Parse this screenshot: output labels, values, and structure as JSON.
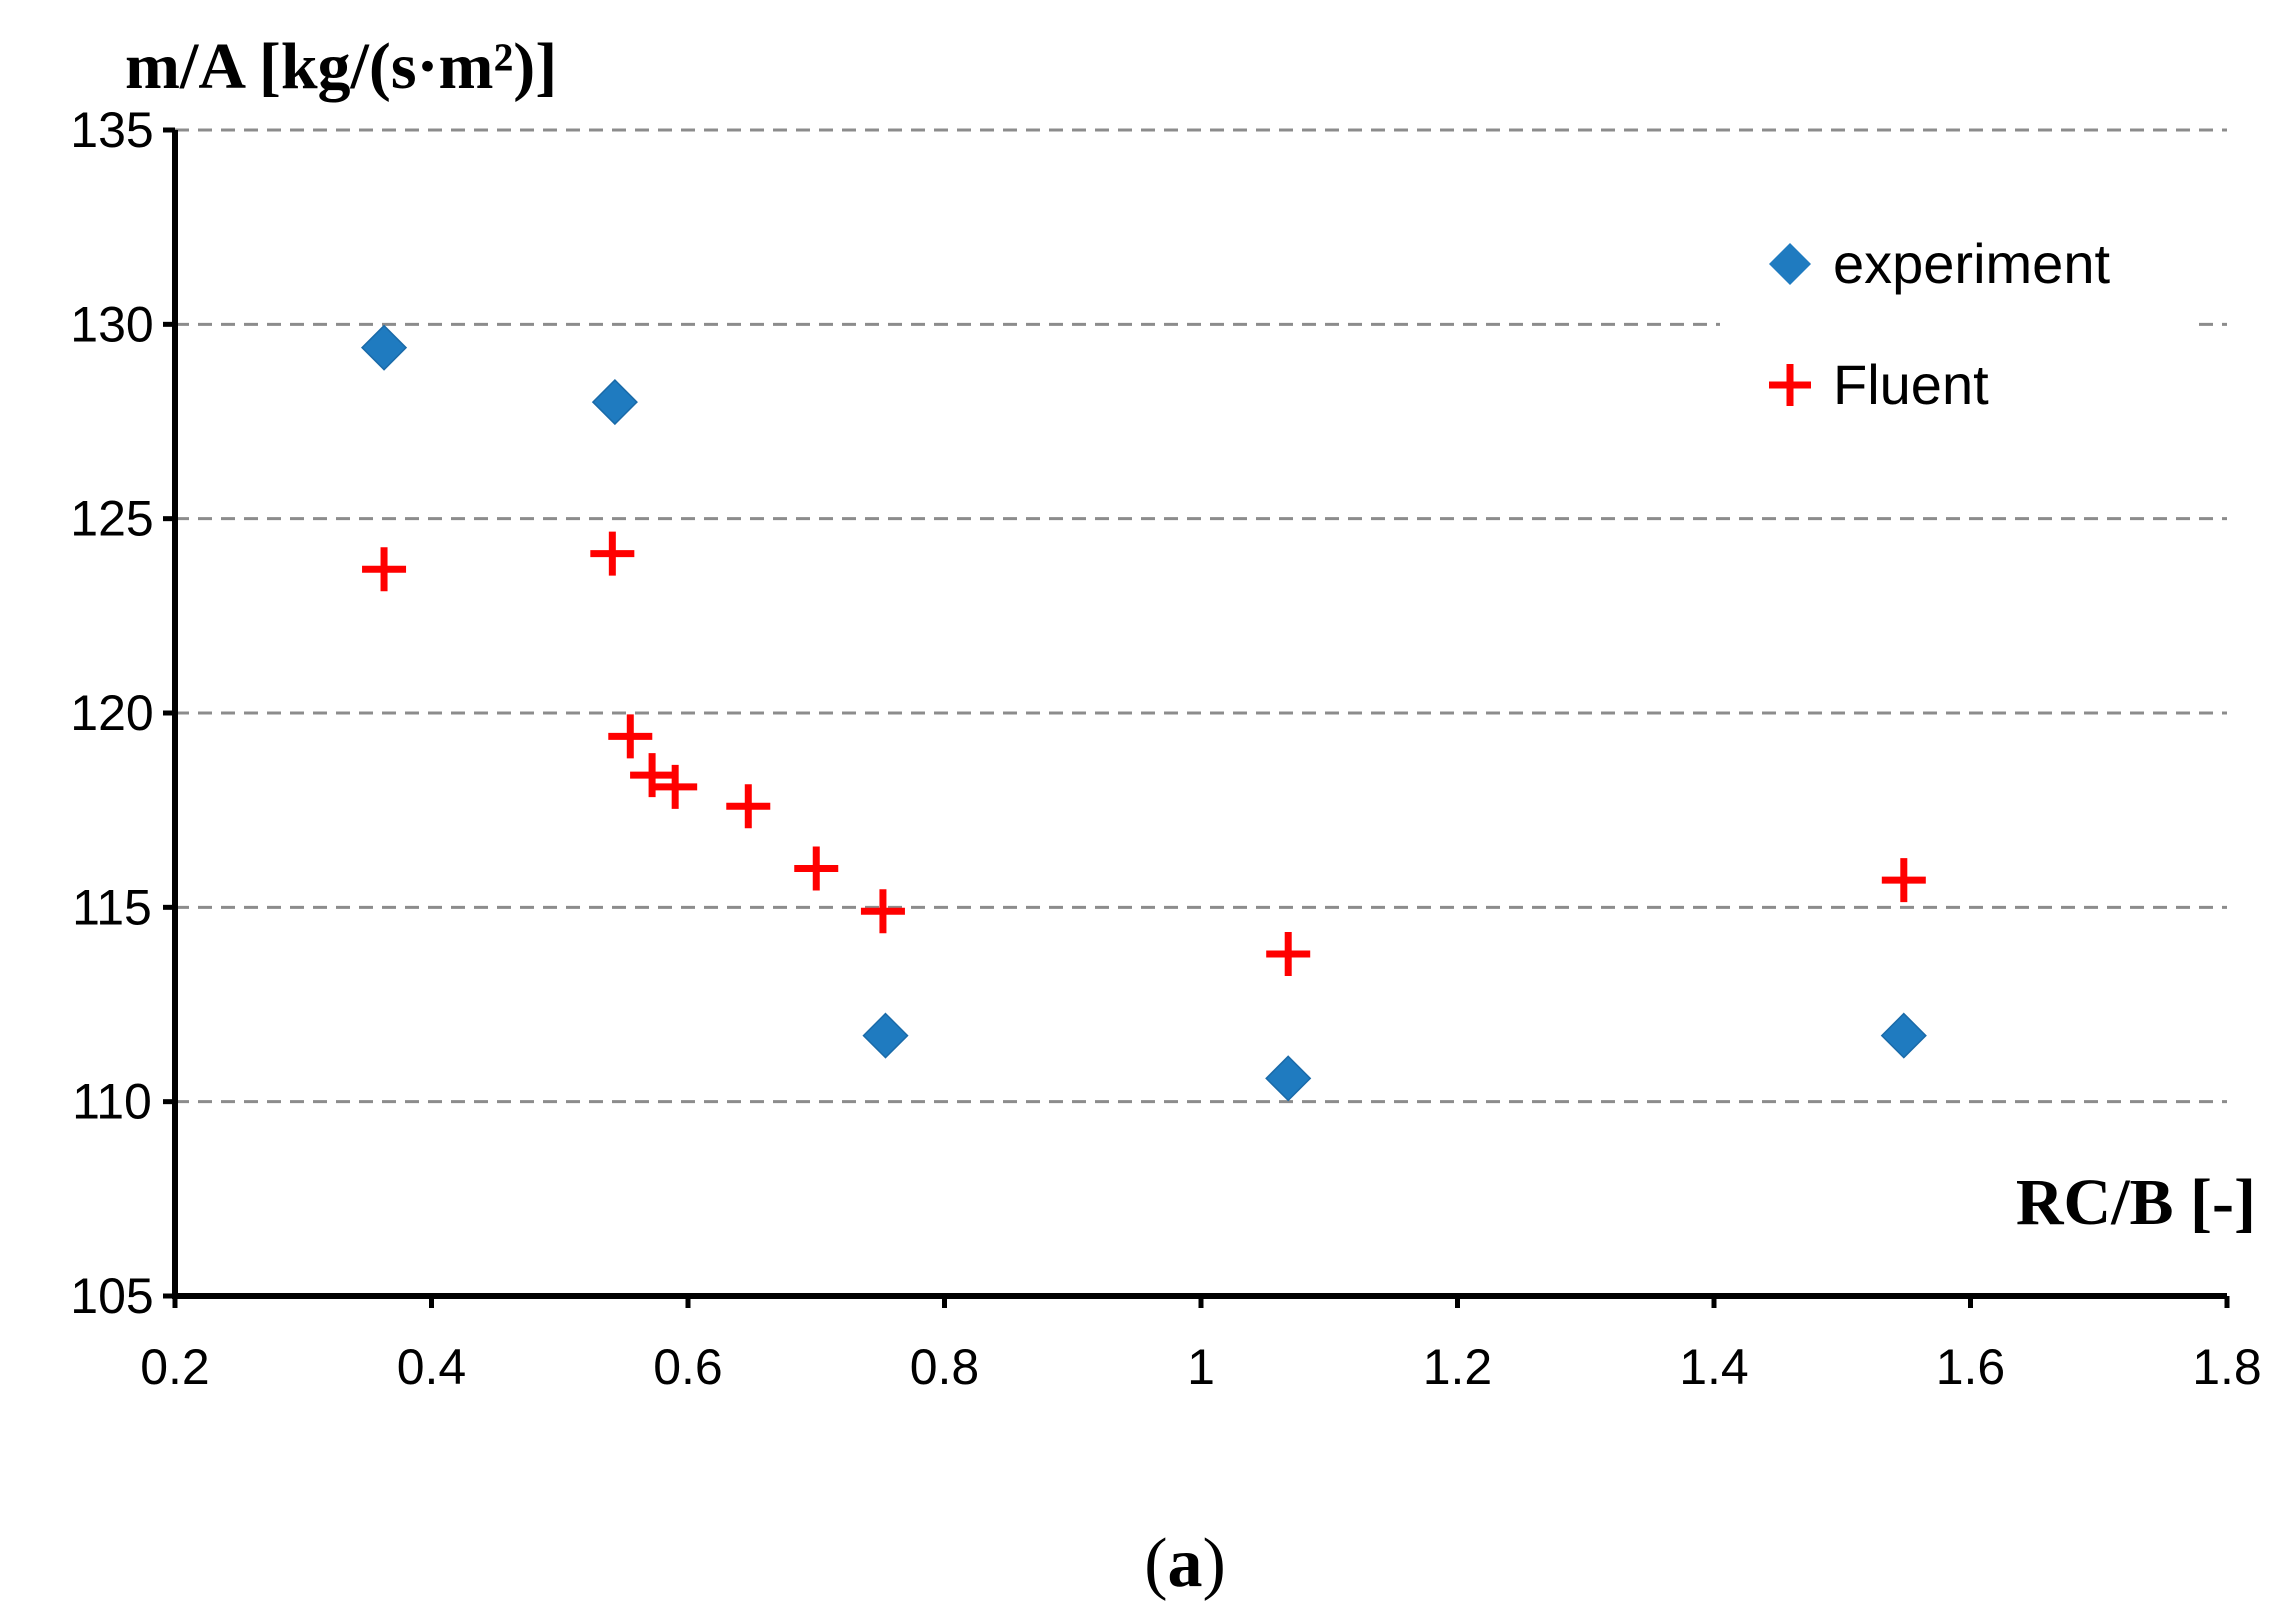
{
  "chart_data": {
    "type": "scatter",
    "title": "",
    "ylabel": "m/A [kg/(s·m²)]",
    "xlabel": "RC/B [-]",
    "xlim": [
      0.2,
      1.8
    ],
    "ylim": [
      105,
      135
    ],
    "xticks": [
      "0.2",
      "0.4",
      "0.6",
      "0.8",
      "1",
      "1.2",
      "1.4",
      "1.6",
      "1.8"
    ],
    "yticks": [
      "105",
      "110",
      "115",
      "120",
      "125",
      "130",
      "135"
    ],
    "grid": "horizontal dashed",
    "legend_position": "top-right",
    "series": [
      {
        "name": "experiment",
        "marker": "diamond",
        "color": "#1f7bc0",
        "x": [
          0.363,
          0.543,
          0.754,
          1.068,
          1.548
        ],
        "y": [
          129.4,
          128.0,
          111.7,
          110.6,
          111.7
        ]
      },
      {
        "name": "Fluent",
        "marker": "plus",
        "color": "#ff0000",
        "x": [
          0.363,
          0.541,
          0.555,
          0.572,
          0.59,
          0.647,
          0.7,
          0.752,
          1.068,
          1.548
        ],
        "y": [
          123.7,
          124.1,
          119.4,
          118.4,
          118.1,
          117.6,
          116.0,
          114.9,
          113.8,
          115.7
        ]
      }
    ]
  },
  "caption": {
    "open": "(",
    "label": "a",
    "close": ")"
  }
}
